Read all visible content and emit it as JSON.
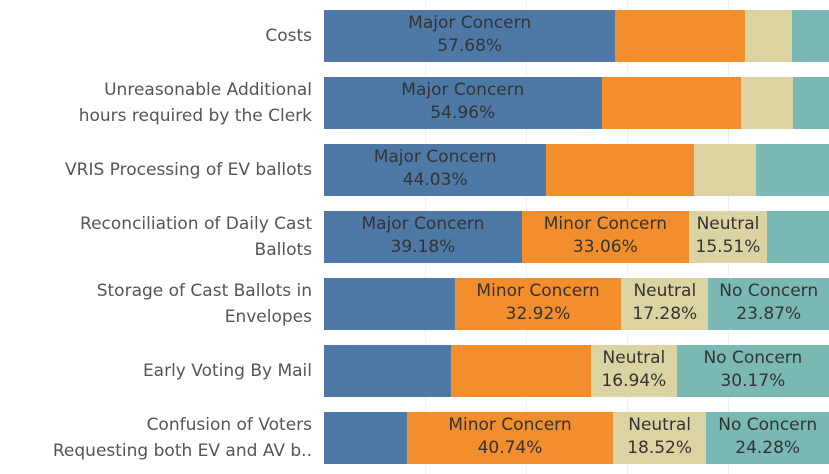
{
  "chart_data": {
    "type": "stacked-bar-horizontal",
    "categories": [
      "Costs",
      "Unreasonable Additional\nhours required by the Clerk",
      "VRIS Processing of EV ballots",
      "Reconciliation of Daily Cast\nBallots",
      "Storage of Cast Ballots in\nEnvelopes",
      "Early Voting By Mail",
      "Confusion of Voters\nRequesting both EV and AV b.."
    ],
    "xlim": [
      0,
      100
    ],
    "series": [
      {
        "name": "Major Concern",
        "color": "#4e79a7",
        "values": [
          57.68,
          54.96,
          44.03,
          39.18,
          25.93,
          25.1,
          16.46
        ],
        "value_labels": [
          "57.68%",
          "54.96%",
          "44.03%",
          "39.18%",
          null,
          null,
          null
        ]
      },
      {
        "name": "Minor Concern",
        "color": "#f28e2b",
        "values": [
          25.7,
          27.6,
          29.3,
          33.06,
          32.92,
          27.8,
          40.74
        ],
        "value_labels": [
          null,
          null,
          null,
          "33.06%",
          "32.92%",
          null,
          "40.74%"
        ]
      },
      {
        "name": "Neutral",
        "color": "#dcd3a2",
        "values": [
          9.3,
          10.3,
          12.2,
          15.51,
          17.28,
          16.94,
          18.52
        ],
        "value_labels": [
          null,
          null,
          null,
          "15.51%",
          "17.28%",
          "16.94%",
          "18.52%"
        ]
      },
      {
        "name": "No Concern",
        "color": "#79b8b3",
        "values": [
          7.32,
          7.14,
          14.47,
          12.25,
          23.87,
          30.17,
          24.28
        ],
        "value_labels": [
          null,
          null,
          null,
          null,
          "23.87%",
          "30.17%",
          "24.28%"
        ]
      }
    ]
  }
}
